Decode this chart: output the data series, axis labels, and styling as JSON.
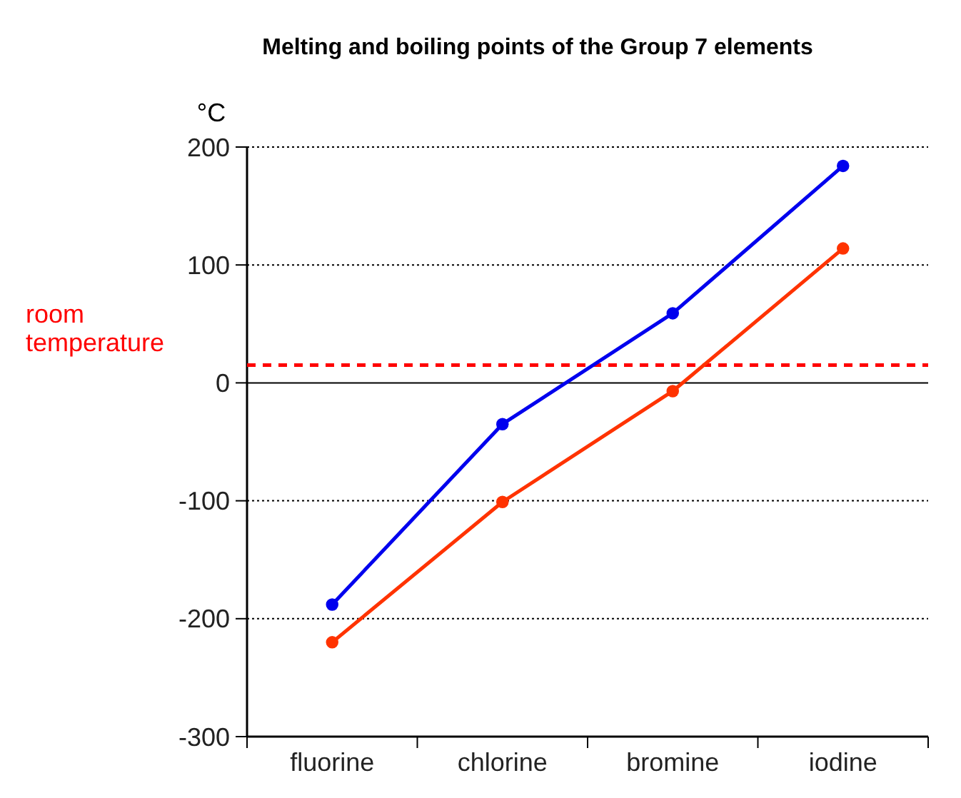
{
  "chart_data": {
    "type": "line",
    "title": "Melting and boiling points of the Group 7 elements",
    "ylabel": "°C",
    "categories": [
      "fluorine",
      "chlorine",
      "bromine",
      "iodine"
    ],
    "series": [
      {
        "color": "#0000ee",
        "values": [
          -188,
          -35,
          59,
          184
        ]
      },
      {
        "color": "#ff3300",
        "values": [
          -220,
          -101,
          -7,
          114
        ]
      }
    ],
    "ylim": [
      -300,
      200
    ],
    "yticks": [
      -300,
      -200,
      -100,
      0,
      100,
      200
    ],
    "grid": "y",
    "marker": "circle",
    "line_style": "solid",
    "ref_lines": [
      {
        "axis": "y",
        "value": 15,
        "label": "room temperature",
        "color": "#ff0000",
        "line_style": "dashed"
      }
    ]
  }
}
